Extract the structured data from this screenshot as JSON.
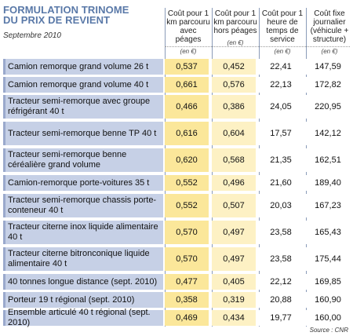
{
  "title_line1": "FORMULATION TRINOME",
  "title_line2": "DU PRIX DE REVIENT",
  "subtitle": "Septembre 2010",
  "columns": [
    {
      "label": "Coût pour 1 km parcouru avec péages",
      "unit": "(en €)"
    },
    {
      "label": "Coût pour 1 km parcouru hors péages",
      "unit": "(en €)"
    },
    {
      "label": "Coût pour 1 heure de temps de service",
      "unit": "(en €)"
    },
    {
      "label": "Coût fixe journalier (véhicule + structure)",
      "unit": "(en €)"
    }
  ],
  "rows": [
    {
      "label": "Camion remorque grand volume 26 t",
      "values": [
        "0,537",
        "0,452",
        "22,41",
        "147,59"
      ]
    },
    {
      "label": "Camion remorque grand volume 40 t",
      "values": [
        "0,661",
        "0,576",
        "22,13",
        "172,82"
      ]
    },
    {
      "label": "Tracteur semi-remorque avec groupe réfrigérant 40 t",
      "values": [
        "0,466",
        "0,386",
        "24,05",
        "220,95"
      ]
    },
    {
      "label": "Tracteur semi-remorque benne TP 40 t",
      "values": [
        "0,616",
        "0,604",
        "17,57",
        "142,12"
      ]
    },
    {
      "label": "Tracteur semi-remorque benne céréalière grand volume",
      "values": [
        "0,620",
        "0,568",
        "21,35",
        "162,51"
      ]
    },
    {
      "label": "Camion-remorque porte-voitures 35 t",
      "values": [
        "0,552",
        "0,496",
        "21,60",
        "189,40"
      ]
    },
    {
      "label": "Tracteur semi-remorque chassis porte-conteneur 40 t",
      "values": [
        "0,552",
        "0,507",
        "20,03",
        "167,23"
      ]
    },
    {
      "label": "Tracteur citerne inox liquide alimentaire 40 t",
      "values": [
        "0,570",
        "0,497",
        "23,58",
        "165,43"
      ]
    },
    {
      "label": "Tracteur citerne bitronconique liquide alimentaire 40 t",
      "values": [
        "0,570",
        "0,497",
        "23,58",
        "175,44"
      ]
    },
    {
      "label": "40 tonnes longue distance (sept. 2010)",
      "values": [
        "0,477",
        "0,405",
        "22,12",
        "169,85"
      ]
    },
    {
      "label": "Porteur 19 t régional (sept. 2010)",
      "values": [
        "0,358",
        "0,319",
        "20,88",
        "160,90"
      ]
    },
    {
      "label": "Ensemble articulé 40 t régional (sept. 2010)",
      "values": [
        "0,469",
        "0,434",
        "19,77",
        "160,00"
      ]
    }
  ],
  "source": "Source : CNR"
}
